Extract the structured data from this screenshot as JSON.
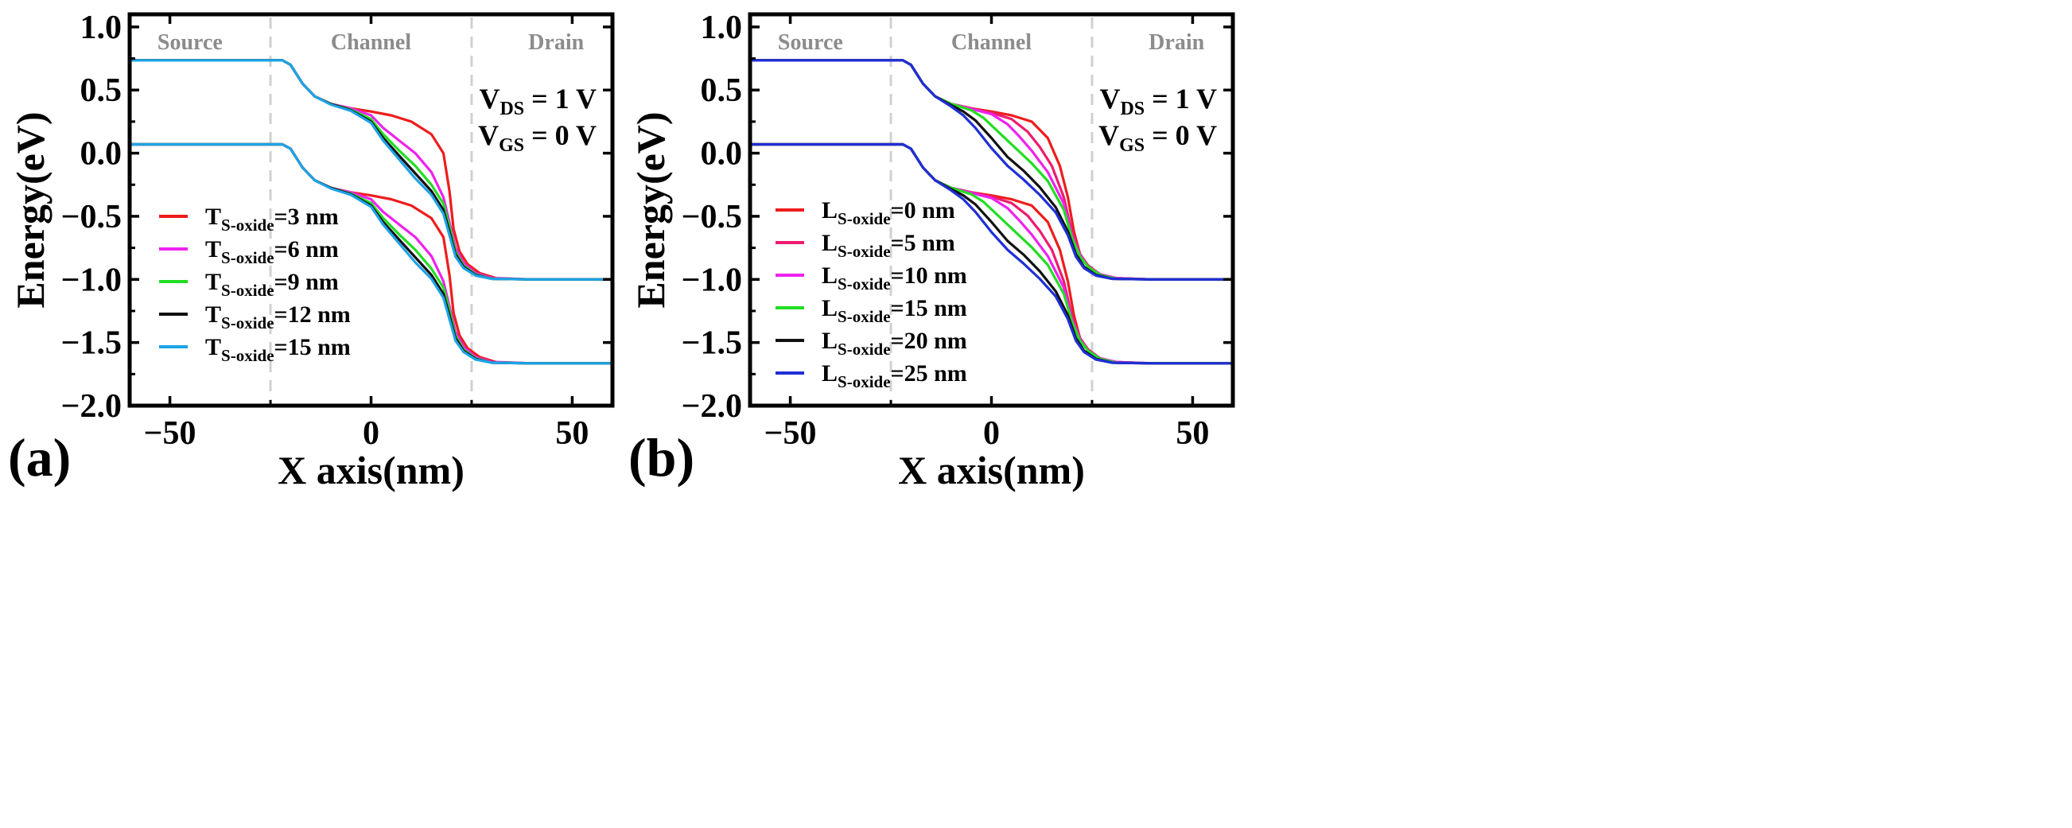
{
  "chart_data": [
    {
      "type": "line",
      "panel_label": "(a)",
      "xlabel": "X axis(nm)",
      "ylabel": "Energy(eV)",
      "xlim": [
        -60,
        60
      ],
      "ylim": [
        -2.0,
        1.1
      ],
      "xticks": [
        -50,
        0,
        50
      ],
      "xtick_labels": [
        "−50",
        "0",
        "50"
      ],
      "yticks": [
        1.0,
        0.5,
        0.0,
        -0.5,
        -1.0,
        -1.5,
        -2.0
      ],
      "ytick_labels": [
        "1.0",
        "0.5",
        "0.0",
        "−0.5",
        "−1.0",
        "−1.5",
        "−2.0"
      ],
      "regions": [
        {
          "label": "Source",
          "x": -45
        },
        {
          "label": "Channel",
          "x": 0
        },
        {
          "label": "Drain",
          "x": 46
        }
      ],
      "region_boundaries": [
        -25,
        25
      ],
      "annotations": [
        {
          "main": "V",
          "sub": "DS",
          "rest": " = 1 V"
        },
        {
          "main": "V",
          "sub": "GS",
          "rest": " = 0 V"
        }
      ],
      "bands": {
        "conduction": {
          "left": 0.735,
          "right": -1.0
        },
        "valence": {
          "left": 0.07,
          "right": -1.665
        },
        "gap": 0.665
      },
      "series": [
        {
          "name_main": "T",
          "name_sub": "S-oxide",
          "name_rest": "=3 nm",
          "color": "#ee1c1c",
          "x": [
            -60,
            -22,
            -20,
            -17,
            -14,
            -10,
            -5,
            0,
            5,
            10,
            15,
            18,
            19.5,
            20.5,
            22,
            24,
            27,
            31,
            40,
            60
          ],
          "cb": [
            0.735,
            0.735,
            0.7,
            0.55,
            0.45,
            0.39,
            0.355,
            0.33,
            0.3,
            0.25,
            0.15,
            0.0,
            -0.3,
            -0.6,
            -0.78,
            -0.88,
            -0.95,
            -0.99,
            -1.0,
            -1.0
          ]
        },
        {
          "name_main": "T",
          "name_sub": "S-oxide",
          "name_rest": "=6 nm",
          "color": "#ee22ee",
          "x": [
            -60,
            -22,
            -20,
            -17,
            -14,
            -10,
            -5,
            0,
            3,
            7,
            11,
            15,
            18,
            19.5,
            21,
            23,
            26,
            30,
            40,
            60
          ],
          "cb": [
            0.735,
            0.735,
            0.7,
            0.55,
            0.45,
            0.39,
            0.355,
            0.3,
            0.2,
            0.1,
            0.0,
            -0.15,
            -0.35,
            -0.55,
            -0.75,
            -0.87,
            -0.95,
            -0.99,
            -1.0,
            -1.0
          ]
        },
        {
          "name_main": "T",
          "name_sub": "S-oxide",
          "name_rest": "=9 nm",
          "color": "#22dd22",
          "x": [
            -60,
            -22,
            -20,
            -17,
            -14,
            -10,
            -5,
            0,
            3,
            7,
            11,
            15,
            18,
            19.5,
            21,
            23,
            26,
            30,
            40,
            60
          ],
          "cb": [
            0.735,
            0.735,
            0.7,
            0.55,
            0.45,
            0.39,
            0.345,
            0.27,
            0.15,
            0.02,
            -0.1,
            -0.25,
            -0.4,
            -0.58,
            -0.78,
            -0.89,
            -0.96,
            -0.995,
            -1.0,
            -1.0
          ]
        },
        {
          "name_main": "T",
          "name_sub": "S-oxide",
          "name_rest": "=12 nm",
          "color": "#111111",
          "x": [
            -60,
            -22,
            -20,
            -17,
            -14,
            -10,
            -5,
            0,
            3,
            7,
            11,
            15,
            18,
            19.5,
            21,
            23,
            26,
            30,
            40,
            60
          ],
          "cb": [
            0.735,
            0.735,
            0.7,
            0.55,
            0.45,
            0.39,
            0.34,
            0.25,
            0.12,
            -0.02,
            -0.16,
            -0.3,
            -0.45,
            -0.62,
            -0.8,
            -0.9,
            -0.965,
            -0.995,
            -1.0,
            -1.0
          ]
        },
        {
          "name_main": "T",
          "name_sub": "S-oxide",
          "name_rest": "=15 nm",
          "color": "#1ea3e6",
          "x": [
            -60,
            -22,
            -20,
            -17,
            -14,
            -10,
            -5,
            0,
            3,
            7,
            11,
            15,
            18,
            19.5,
            21,
            23,
            26,
            30,
            40,
            60
          ],
          "cb": [
            0.735,
            0.735,
            0.7,
            0.55,
            0.45,
            0.385,
            0.335,
            0.24,
            0.1,
            -0.05,
            -0.2,
            -0.33,
            -0.48,
            -0.65,
            -0.82,
            -0.91,
            -0.97,
            -0.995,
            -1.0,
            -1.0
          ]
        }
      ]
    },
    {
      "type": "line",
      "panel_label": "(b)",
      "xlabel": "X axis(nm)",
      "ylabel": "Energy(eV)",
      "xlim": [
        -60,
        60
      ],
      "ylim": [
        -2.0,
        1.1
      ],
      "xticks": [
        -50,
        0,
        50
      ],
      "xtick_labels": [
        "−50",
        "0",
        "50"
      ],
      "yticks": [
        1.0,
        0.5,
        0.0,
        -0.5,
        -1.0,
        -1.5,
        -2.0
      ],
      "ytick_labels": [
        "1.0",
        "0.5",
        "0.0",
        "−0.5",
        "−1.0",
        "−1.5",
        "−2.0"
      ],
      "regions": [
        {
          "label": "Source",
          "x": -45
        },
        {
          "label": "Channel",
          "x": 0
        },
        {
          "label": "Drain",
          "x": 46
        }
      ],
      "region_boundaries": [
        -25,
        25
      ],
      "annotations": [
        {
          "main": "V",
          "sub": "DS",
          "rest": " = 1 V"
        },
        {
          "main": "V",
          "sub": "GS",
          "rest": " = 0 V"
        }
      ],
      "bands": {
        "conduction": {
          "left": 0.735,
          "right": -1.0
        },
        "valence": {
          "left": 0.07,
          "right": -1.665
        },
        "gap": 0.665
      },
      "series": [
        {
          "name_main": "L",
          "name_sub": "S-oxide",
          "name_rest": "=0 nm",
          "color": "#ee1c1c",
          "x": [
            -60,
            -22,
            -20,
            -17,
            -14,
            -10,
            -5,
            0,
            5,
            10,
            14,
            17,
            19,
            20.5,
            22,
            24,
            27,
            31,
            40,
            60
          ],
          "cb": [
            0.735,
            0.735,
            0.7,
            0.55,
            0.45,
            0.39,
            0.355,
            0.33,
            0.3,
            0.25,
            0.12,
            -0.1,
            -0.35,
            -0.62,
            -0.8,
            -0.89,
            -0.96,
            -0.99,
            -1.0,
            -1.0
          ]
        },
        {
          "name_main": "L",
          "name_sub": "S-oxide",
          "name_rest": "=5 nm",
          "color": "#ee1c6e",
          "x": [
            -60,
            -22,
            -20,
            -17,
            -14,
            -10,
            -5,
            0,
            5,
            9,
            12,
            15,
            18,
            20,
            22,
            24,
            27,
            31,
            40,
            60
          ],
          "cb": [
            0.735,
            0.735,
            0.7,
            0.55,
            0.45,
            0.39,
            0.355,
            0.32,
            0.27,
            0.17,
            0.05,
            -0.1,
            -0.35,
            -0.63,
            -0.8,
            -0.89,
            -0.96,
            -0.99,
            -1.0,
            -1.0
          ]
        },
        {
          "name_main": "L",
          "name_sub": "S-oxide",
          "name_rest": "=10 nm",
          "color": "#ee22ee",
          "x": [
            -60,
            -22,
            -20,
            -17,
            -14,
            -10,
            -5,
            0,
            4,
            7,
            10,
            14,
            18,
            20,
            22,
            24,
            27,
            31,
            40,
            60
          ],
          "cb": [
            0.735,
            0.735,
            0.7,
            0.55,
            0.45,
            0.39,
            0.35,
            0.31,
            0.23,
            0.13,
            0.02,
            -0.15,
            -0.4,
            -0.65,
            -0.81,
            -0.9,
            -0.96,
            -0.99,
            -1.0,
            -1.0
          ]
        },
        {
          "name_main": "L",
          "name_sub": "S-oxide",
          "name_rest": "=15 nm",
          "color": "#22dd22",
          "x": [
            -60,
            -22,
            -20,
            -17,
            -14,
            -10,
            -5,
            -2,
            2,
            6,
            10,
            14,
            18,
            20,
            22,
            24,
            27,
            31,
            40,
            60
          ],
          "cb": [
            0.735,
            0.735,
            0.7,
            0.55,
            0.45,
            0.39,
            0.34,
            0.28,
            0.16,
            0.04,
            -0.08,
            -0.22,
            -0.45,
            -0.67,
            -0.82,
            -0.9,
            -0.965,
            -0.995,
            -1.0,
            -1.0
          ]
        },
        {
          "name_main": "L",
          "name_sub": "S-oxide",
          "name_rest": "=20 nm",
          "color": "#111111",
          "x": [
            -60,
            -22,
            -20,
            -17,
            -14,
            -10,
            -7,
            -4,
            0,
            4,
            8,
            12,
            16,
            19,
            21,
            23,
            26,
            30,
            40,
            60
          ],
          "cb": [
            0.735,
            0.735,
            0.7,
            0.55,
            0.45,
            0.38,
            0.33,
            0.26,
            0.12,
            -0.03,
            -0.14,
            -0.27,
            -0.43,
            -0.62,
            -0.8,
            -0.9,
            -0.965,
            -0.995,
            -1.0,
            -1.0
          ]
        },
        {
          "name_main": "L",
          "name_sub": "S-oxide",
          "name_rest": "=25 nm",
          "color": "#1f2fd6",
          "x": [
            -60,
            -22,
            -20,
            -17,
            -14,
            -10,
            -7,
            -4,
            0,
            4,
            8,
            12,
            16,
            19,
            21,
            23,
            26,
            30,
            40,
            60
          ],
          "cb": [
            0.735,
            0.735,
            0.7,
            0.55,
            0.45,
            0.37,
            0.3,
            0.2,
            0.04,
            -0.1,
            -0.21,
            -0.33,
            -0.47,
            -0.65,
            -0.82,
            -0.91,
            -0.97,
            -0.995,
            -1.0,
            -1.0
          ]
        }
      ]
    }
  ]
}
